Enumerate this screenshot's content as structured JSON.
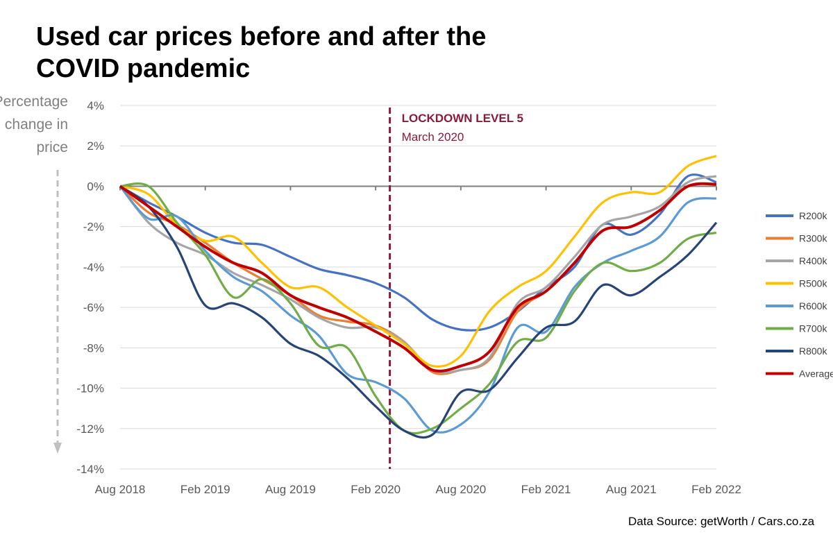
{
  "title": "Used car prices before and after the COVID pandemic",
  "source": "Data Source: getWorth / Cars.co.za",
  "chart_data": {
    "type": "line",
    "title": "Used car prices before and after the COVID pandemic",
    "ylabel": [
      "Percentage",
      "change in",
      "price"
    ],
    "xlabel": "",
    "ylim": [
      -14,
      4
    ],
    "yticks": [
      "4%",
      "2%",
      "0%",
      "-2%",
      "-4%",
      "-6%",
      "-8%",
      "-10%",
      "-12%",
      "-14%"
    ],
    "ytick_values": [
      4,
      2,
      0,
      -2,
      -4,
      -6,
      -8,
      -10,
      -12,
      -14
    ],
    "xticks": [
      "Aug 2018",
      "Feb 2019",
      "Aug 2019",
      "Feb 2020",
      "Aug 2020",
      "Feb 2021",
      "Aug 2021",
      "Feb 2022"
    ],
    "x": [
      "2018-08",
      "2018-10",
      "2018-12",
      "2019-02",
      "2019-04",
      "2019-06",
      "2019-08",
      "2019-10",
      "2019-12",
      "2020-02",
      "2020-04",
      "2020-06",
      "2020-08",
      "2020-10",
      "2020-12",
      "2021-02",
      "2021-04",
      "2021-06",
      "2021-08",
      "2021-10",
      "2021-12",
      "2022-02"
    ],
    "grid": "horizontal",
    "legend": "right",
    "annotation": {
      "label": "LOCKDOWN LEVEL 5",
      "sublabel": "March 2020",
      "x": "2020-03",
      "color": "#8B1A3A"
    },
    "series": [
      {
        "name": "R200k",
        "color": "#4472C4",
        "values": [
          0,
          -0.8,
          -1.5,
          -2.3,
          -2.8,
          -2.9,
          -3.5,
          -4.1,
          -4.4,
          -4.8,
          -5.5,
          -6.6,
          -7.1,
          -7.0,
          -6.2,
          -5.0,
          -4.0,
          -1.9,
          -2.4,
          -1.4,
          0.5,
          0.2
        ]
      },
      {
        "name": "R300k",
        "color": "#ED7D31",
        "values": [
          0,
          -1.3,
          -1.9,
          -2.8,
          -3.8,
          -4.6,
          -5.4,
          -6.4,
          -6.7,
          -6.9,
          -7.7,
          -9.2,
          -9.1,
          -8.6,
          -6.2,
          -5.2,
          -3.8,
          -2.2,
          -2.0,
          -1.2,
          0.0,
          0.1
        ]
      },
      {
        "name": "R400k",
        "color": "#A5A5A5",
        "values": [
          0,
          -1.8,
          -2.8,
          -3.4,
          -4.3,
          -4.9,
          -5.6,
          -6.5,
          -7.0,
          -7.0,
          -7.7,
          -9.1,
          -9.1,
          -8.5,
          -5.8,
          -5.0,
          -3.5,
          -1.9,
          -1.5,
          -1.0,
          0.2,
          0.5
        ]
      },
      {
        "name": "R500k",
        "color": "#FFC000",
        "values": [
          0,
          -0.4,
          -1.9,
          -2.7,
          -2.5,
          -3.8,
          -5.0,
          -5.0,
          -6.0,
          -6.9,
          -7.8,
          -8.9,
          -8.4,
          -6.2,
          -5.0,
          -4.2,
          -2.5,
          -0.8,
          -0.3,
          -0.3,
          1.0,
          1.5
        ]
      },
      {
        "name": "R600k",
        "color": "#5B9BD5",
        "values": [
          0,
          -1.6,
          -1.5,
          -3.2,
          -4.5,
          -5.2,
          -6.4,
          -7.4,
          -9.3,
          -9.7,
          -10.5,
          -12.1,
          -11.8,
          -10.2,
          -7.0,
          -7.2,
          -5.0,
          -3.8,
          -3.2,
          -2.5,
          -0.8,
          -0.6
        ]
      },
      {
        "name": "R700k",
        "color": "#70AD47",
        "values": [
          0,
          0.0,
          -1.8,
          -3.4,
          -5.5,
          -4.6,
          -5.8,
          -7.9,
          -8.0,
          -10.4,
          -12.1,
          -12.0,
          -11.0,
          -9.8,
          -7.7,
          -7.5,
          -5.2,
          -3.8,
          -4.2,
          -3.8,
          -2.6,
          -2.3
        ]
      },
      {
        "name": "R800k",
        "color": "#264478",
        "values": [
          0,
          -1.0,
          -3.0,
          -5.9,
          -5.8,
          -6.5,
          -7.8,
          -8.4,
          -9.5,
          -10.9,
          -12.1,
          -12.3,
          -10.2,
          -10.1,
          -8.5,
          -7.0,
          -6.7,
          -4.9,
          -5.4,
          -4.5,
          -3.4,
          -1.8
        ]
      },
      {
        "name": "Average",
        "color": "#C00000",
        "values": [
          0,
          -1.0,
          -2.0,
          -3.0,
          -3.8,
          -4.3,
          -5.4,
          -6.0,
          -6.5,
          -7.2,
          -8.0,
          -9.1,
          -8.9,
          -8.2,
          -6.0,
          -5.2,
          -3.8,
          -2.2,
          -2.0,
          -1.2,
          0.0,
          0.1
        ]
      }
    ]
  }
}
